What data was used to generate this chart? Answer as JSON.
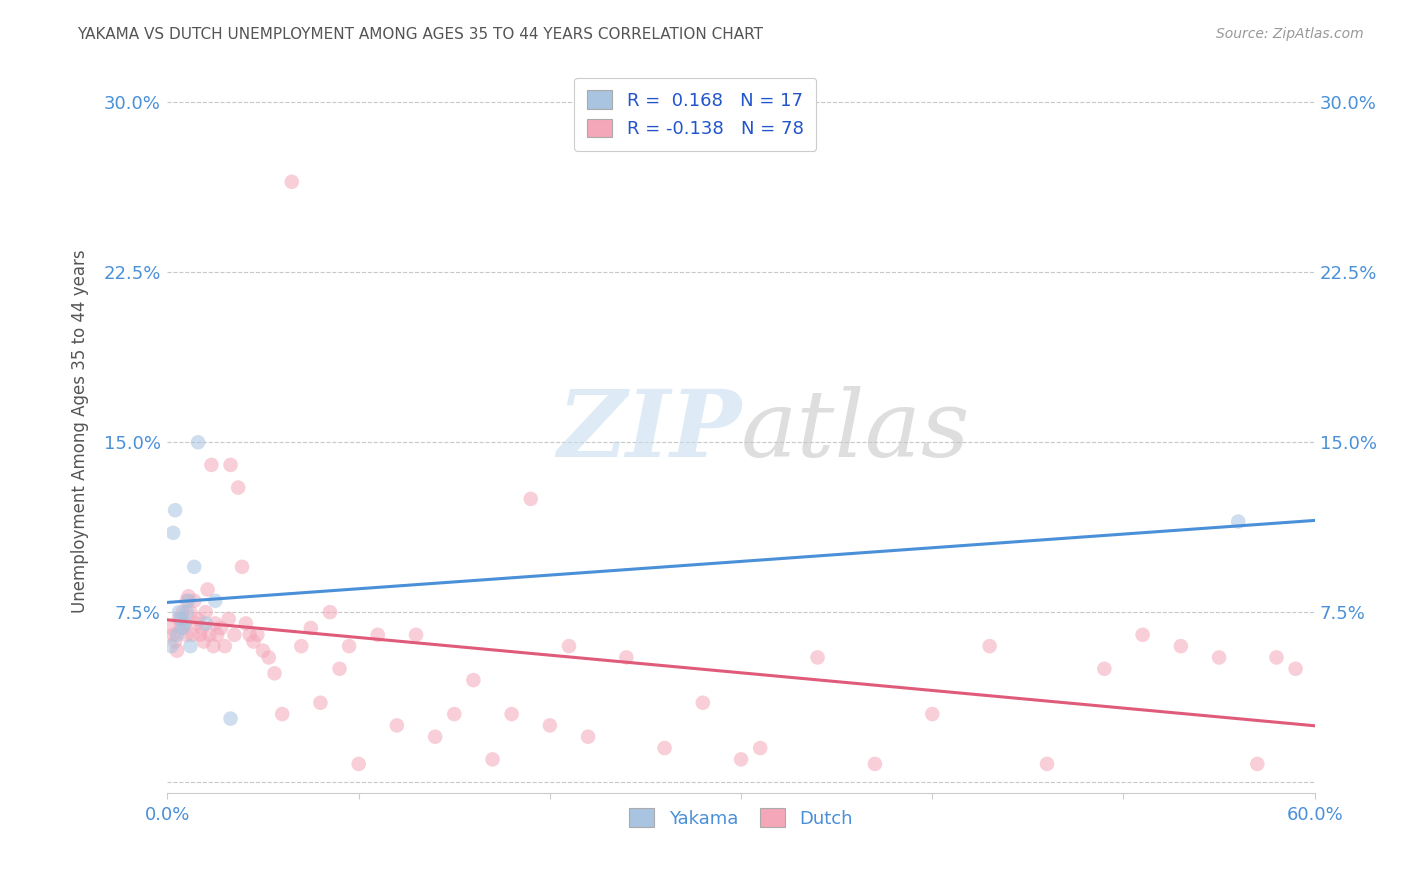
{
  "title": "YAKAMA VS DUTCH UNEMPLOYMENT AMONG AGES 35 TO 44 YEARS CORRELATION CHART",
  "source": "Source: ZipAtlas.com",
  "ylabel": "Unemployment Among Ages 35 to 44 years",
  "xlim": [
    0.0,
    0.6
  ],
  "ylim": [
    -0.005,
    0.315
  ],
  "yticks": [
    0.0,
    0.075,
    0.15,
    0.225,
    0.3
  ],
  "ytick_labels": [
    "",
    "7.5%",
    "15.0%",
    "22.5%",
    "30.0%"
  ],
  "xticks": [
    0.0,
    0.1,
    0.2,
    0.3,
    0.4,
    0.5,
    0.6
  ],
  "xtick_labels": [
    "0.0%",
    "",
    "",
    "",
    "",
    "",
    "60.0%"
  ],
  "yakama_R": 0.168,
  "yakama_N": 17,
  "dutch_R": -0.138,
  "dutch_N": 78,
  "yakama_color": "#a8c4e0",
  "dutch_color": "#f4a7b9",
  "trend_yakama_color": "#4a90d9",
  "trend_dutch_color": "#e05a7a",
  "watermark_zip": "ZIP",
  "watermark_atlas": "atlas",
  "background_color": "#ffffff",
  "grid_color": "#c8c8c8",
  "title_color": "#555555",
  "axis_label_color": "#4a90d9",
  "legend_color": "#2255cc",
  "yakama_x": [
    0.002,
    0.003,
    0.004,
    0.005,
    0.006,
    0.007,
    0.008,
    0.009,
    0.01,
    0.011,
    0.012,
    0.014,
    0.016,
    0.02,
    0.025,
    0.033,
    0.56
  ],
  "yakama_y": [
    0.06,
    0.11,
    0.12,
    0.065,
    0.075,
    0.072,
    0.068,
    0.07,
    0.075,
    0.08,
    0.06,
    0.095,
    0.15,
    0.07,
    0.08,
    0.028,
    0.115
  ],
  "dutch_x": [
    0.002,
    0.003,
    0.004,
    0.005,
    0.006,
    0.007,
    0.008,
    0.009,
    0.01,
    0.01,
    0.011,
    0.012,
    0.013,
    0.014,
    0.015,
    0.016,
    0.017,
    0.018,
    0.019,
    0.02,
    0.021,
    0.022,
    0.023,
    0.024,
    0.025,
    0.026,
    0.028,
    0.03,
    0.032,
    0.033,
    0.035,
    0.037,
    0.039,
    0.041,
    0.043,
    0.045,
    0.047,
    0.05,
    0.053,
    0.056,
    0.06,
    0.065,
    0.07,
    0.075,
    0.08,
    0.085,
    0.09,
    0.095,
    0.1,
    0.11,
    0.12,
    0.13,
    0.14,
    0.15,
    0.16,
    0.17,
    0.18,
    0.19,
    0.2,
    0.21,
    0.22,
    0.24,
    0.26,
    0.28,
    0.3,
    0.31,
    0.34,
    0.37,
    0.4,
    0.43,
    0.46,
    0.49,
    0.51,
    0.53,
    0.55,
    0.57,
    0.58,
    0.59
  ],
  "dutch_y": [
    0.068,
    0.065,
    0.062,
    0.058,
    0.072,
    0.068,
    0.075,
    0.07,
    0.065,
    0.08,
    0.082,
    0.075,
    0.065,
    0.08,
    0.07,
    0.072,
    0.065,
    0.068,
    0.062,
    0.075,
    0.085,
    0.065,
    0.14,
    0.06,
    0.07,
    0.065,
    0.068,
    0.06,
    0.072,
    0.14,
    0.065,
    0.13,
    0.095,
    0.07,
    0.065,
    0.062,
    0.065,
    0.058,
    0.055,
    0.048,
    0.03,
    0.265,
    0.06,
    0.068,
    0.035,
    0.075,
    0.05,
    0.06,
    0.008,
    0.065,
    0.025,
    0.065,
    0.02,
    0.03,
    0.045,
    0.01,
    0.03,
    0.125,
    0.025,
    0.06,
    0.02,
    0.055,
    0.015,
    0.035,
    0.01,
    0.015,
    0.055,
    0.008,
    0.03,
    0.06,
    0.008,
    0.05,
    0.065,
    0.06,
    0.055,
    0.008,
    0.055,
    0.05
  ],
  "marker_size": 110,
  "marker_alpha": 0.55
}
